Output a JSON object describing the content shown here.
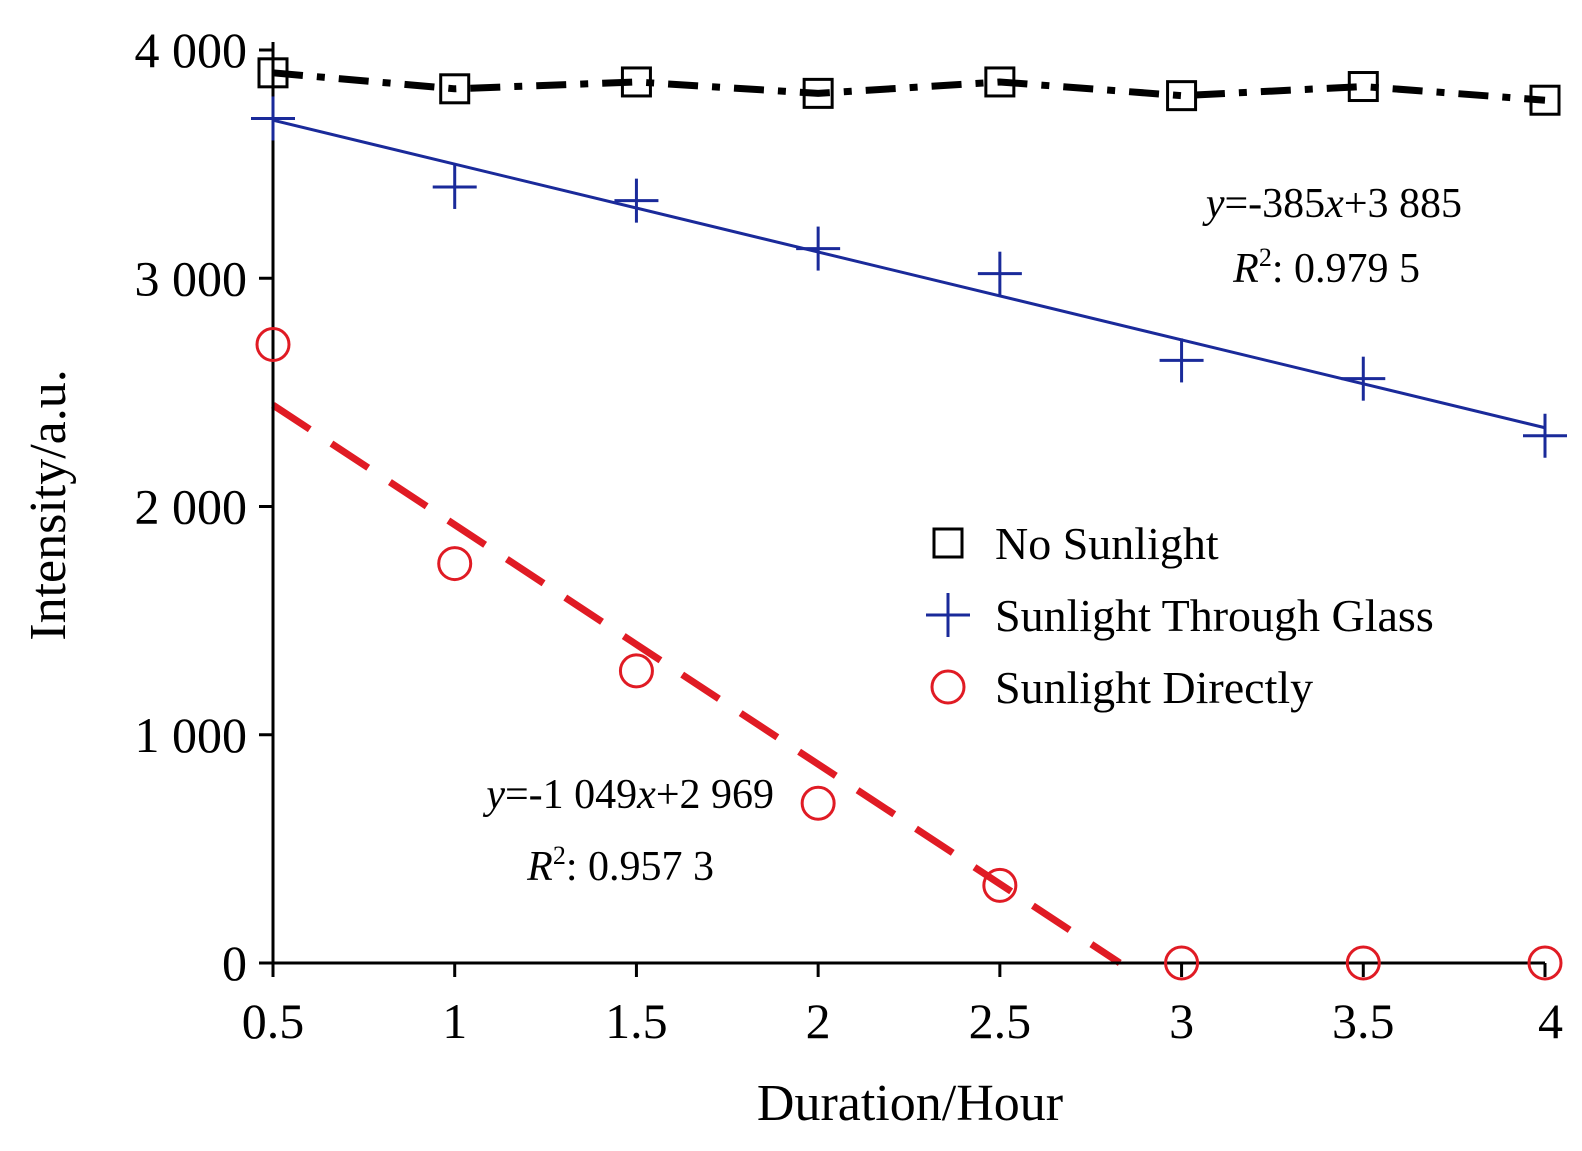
{
  "chart_data": {
    "type": "line",
    "title": "",
    "xlabel": "Duration/Hour",
    "ylabel": "Intensity/a.u.",
    "xlim": [
      0.5,
      4
    ],
    "ylim": [
      0,
      4000
    ],
    "x_ticks": [
      0.5,
      1,
      1.5,
      2,
      2.5,
      3,
      3.5,
      4
    ],
    "x_tick_labels": [
      "0.5",
      "1",
      "1.5",
      "2",
      "2.5",
      "3",
      "3.5",
      "4"
    ],
    "y_ticks": [
      0,
      1000,
      2000,
      3000,
      4000
    ],
    "y_tick_labels": [
      "0",
      "1 000",
      "2 000",
      "3 000",
      "4 000"
    ],
    "grid": false,
    "legend_position": "center-right",
    "x": [
      0.5,
      1,
      1.5,
      2,
      2.5,
      3,
      3.5,
      4
    ],
    "series": [
      {
        "name": "No Sunlight",
        "marker": "square",
        "line": "dash-dot",
        "color": "#000000",
        "values": [
          3900,
          3830,
          3860,
          3810,
          3860,
          3800,
          3840,
          3780
        ]
      },
      {
        "name": "Sunlight Through Glass",
        "marker": "plus",
        "line": "fit",
        "color": "#1a2a9a",
        "values": [
          3700,
          3400,
          3340,
          3130,
          3020,
          2640,
          2560,
          2310
        ],
        "fit": {
          "slope": -385,
          "intercept": 3885,
          "x_range": [
            0.5,
            4
          ]
        }
      },
      {
        "name": "Sunlight Directly",
        "marker": "circle",
        "line": "dashed-fit",
        "color": "#e01b24",
        "values": [
          2710,
          1750,
          1280,
          700,
          340,
          0,
          0,
          0
        ],
        "fit": {
          "slope": -1049,
          "intercept": 2969,
          "x_range": [
            0.5,
            2.83
          ]
        }
      }
    ],
    "annotations": [
      {
        "series": "Sunlight Through Glass",
        "equation": "y=-385x+3 885",
        "r2": "R2: 0.979 5",
        "x": 3.2,
        "y": 3320
      },
      {
        "series": "Sunlight Directly",
        "equation": "y=-1 049x+2 969",
        "r2": "R2: 0.957 3",
        "x": 1.65,
        "y": 740
      }
    ]
  },
  "text": {
    "eq1_y": "y",
    "eq1_mid": "=-385",
    "eq1_x": "x",
    "eq1_end": "+3 885",
    "r1_R": "R",
    "r1_sup": "2",
    "r1_val": ": 0.979 5",
    "eq2_y": "y",
    "eq2_mid": "=-1 049",
    "eq2_x": "x",
    "eq2_end": "+2 969",
    "r2_R": "R",
    "r2_sup": "2",
    "r2_val": ": 0.957 3"
  }
}
